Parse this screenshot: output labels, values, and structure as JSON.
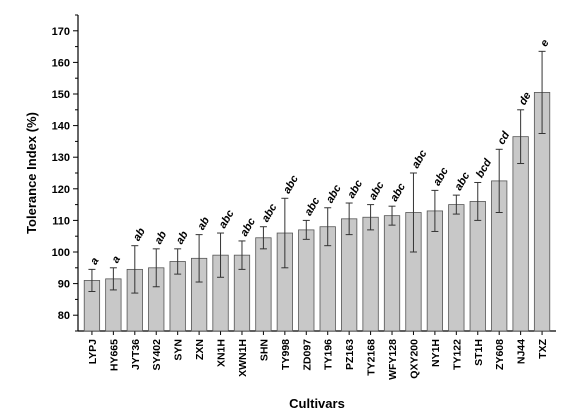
{
  "chart_data": {
    "type": "bar",
    "xlabel": "Cultivars",
    "ylabel": "Tolerance Index (%)",
    "ylim": [
      75,
      175
    ],
    "yticks": [
      80,
      90,
      100,
      110,
      120,
      130,
      140,
      150,
      160,
      170
    ],
    "categories": [
      "LYPJ",
      "HY665",
      "JYT36",
      "SY402",
      "SYN",
      "ZXN",
      "XN1H",
      "XWN1H",
      "SHN",
      "TY998",
      "ZD097",
      "TY196",
      "PZ163",
      "TY2168",
      "WFY128",
      "QXY200",
      "NY1H",
      "TY122",
      "ST1H",
      "ZY608",
      "NJ44",
      "TXZ"
    ],
    "values": [
      91,
      91.5,
      94.5,
      95,
      97,
      98,
      99,
      99,
      104.5,
      106,
      107,
      108,
      110.5,
      111,
      111.5,
      112.5,
      113,
      115,
      116,
      122.5,
      136.5,
      150.5
    ],
    "errors": [
      3.5,
      3.5,
      7.5,
      6,
      4,
      7.5,
      7,
      4.5,
      3.5,
      11,
      3,
      6,
      5,
      4,
      3,
      12.5,
      6.5,
      3,
      6,
      10,
      8.5,
      13
    ],
    "significance": [
      "a",
      "a",
      "ab",
      "ab",
      "ab",
      "ab",
      "abc",
      "abc",
      "abc",
      "abc",
      "abc",
      "abc",
      "abc",
      "abc",
      "abc",
      "abc",
      "abc",
      "abc",
      "bcd",
      "cd",
      "de",
      "e"
    ],
    "bar_color": "#c8c8c8",
    "bar_edge_color": "#555555",
    "grid": false
  }
}
